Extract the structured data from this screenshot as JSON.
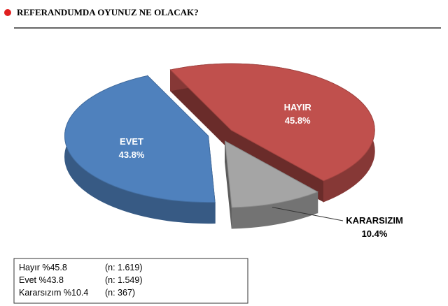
{
  "chart_data": {
    "type": "pie",
    "title": "REFERANDUMDA OYUNUZ NE OLACAK?",
    "categories": [
      "HAYIR",
      "KARARSIZIM",
      "EVET"
    ],
    "values": [
      45.8,
      10.4,
      43.8
    ],
    "value_labels": [
      "45.8%",
      "10.4%",
      "43.8%"
    ],
    "colors": [
      "#c0504d",
      "#a5a5a5",
      "#4f81bd"
    ]
  },
  "legend_table": [
    [
      "Hayır %45.8",
      "(n: 1.619)"
    ],
    [
      "Evet %43.8",
      "(n: 1.549)"
    ],
    [
      "Kararsızım %10.4",
      "(n: 367)"
    ]
  ]
}
